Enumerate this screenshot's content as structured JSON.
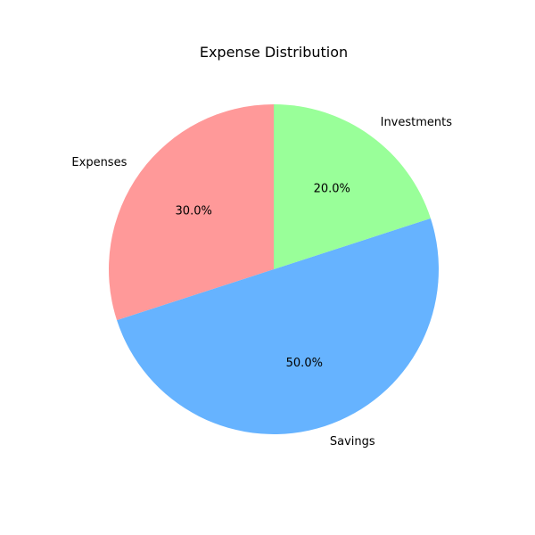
{
  "chart_data": {
    "type": "pie",
    "title": "Expense Distribution",
    "start_angle_deg": 90,
    "direction": "counterclockwise",
    "slices": [
      {
        "label": "Expenses",
        "value": 30,
        "percent_label": "30.0%",
        "color": "#ff9999"
      },
      {
        "label": "Savings",
        "value": 50,
        "percent_label": "50.0%",
        "color": "#66b3ff"
      },
      {
        "label": "Investments",
        "value": 20,
        "percent_label": "20.0%",
        "color": "#99ff99"
      }
    ]
  }
}
